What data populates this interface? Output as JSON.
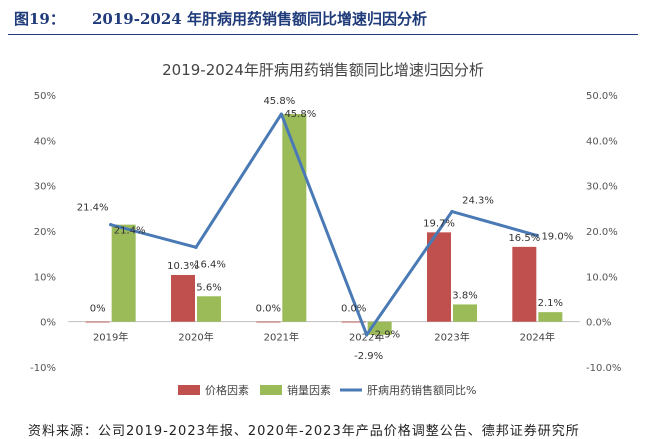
{
  "figure": {
    "label": "图19：",
    "title": "2019-2024 年肝病用药销售额同比增速归因分析"
  },
  "source": "资料来源：公司2019-2023年报、2020年-2023年产品价格调整公告、德邦证券研究所",
  "colors": {
    "price": "#c0504d",
    "volume": "#9bbb59",
    "line": "#4a7ab5",
    "header": "#1f3b7a"
  },
  "chart_data": {
    "type": "bar",
    "title": "2019-2024年肝病用药销售额同比增速归因分析",
    "categories": [
      "2019年",
      "2020年",
      "2021年",
      "2022年",
      "2023年",
      "2024年"
    ],
    "series": [
      {
        "name": "价格因素",
        "kind": "bar",
        "values": [
          0.0,
          10.3,
          0.0,
          0.0,
          19.7,
          16.5
        ],
        "labels": [
          "0%",
          "10.3%",
          "0.0%",
          "0.0%",
          "19.7%",
          "16.5%"
        ]
      },
      {
        "name": "销量因素",
        "kind": "bar",
        "values": [
          21.4,
          5.6,
          45.8,
          -2.9,
          3.8,
          2.1
        ],
        "labels": [
          "21.4%",
          "5.6%",
          "45.8%",
          "-2.9%",
          "3.8%",
          "2.1%"
        ]
      },
      {
        "name": "肝病用药销售额同比%",
        "kind": "line",
        "values": [
          21.4,
          16.4,
          45.8,
          -2.9,
          24.3,
          19.0
        ],
        "labels": [
          "21.4%",
          "16.4%",
          "45.8%",
          "-2.9%",
          "24.3%",
          "19.0%"
        ]
      }
    ],
    "left_axis": {
      "ylim": [
        -10,
        50
      ],
      "ticks": [
        "-10%",
        "0%",
        "10%",
        "20%",
        "30%",
        "40%",
        "50%"
      ]
    },
    "right_axis": {
      "ylim": [
        -10,
        50
      ],
      "ticks": [
        "-10.0%",
        "0.0%",
        "10.0%",
        "20.0%",
        "30.0%",
        "40.0%",
        "50.0%"
      ]
    },
    "legend_position": "bottom"
  }
}
